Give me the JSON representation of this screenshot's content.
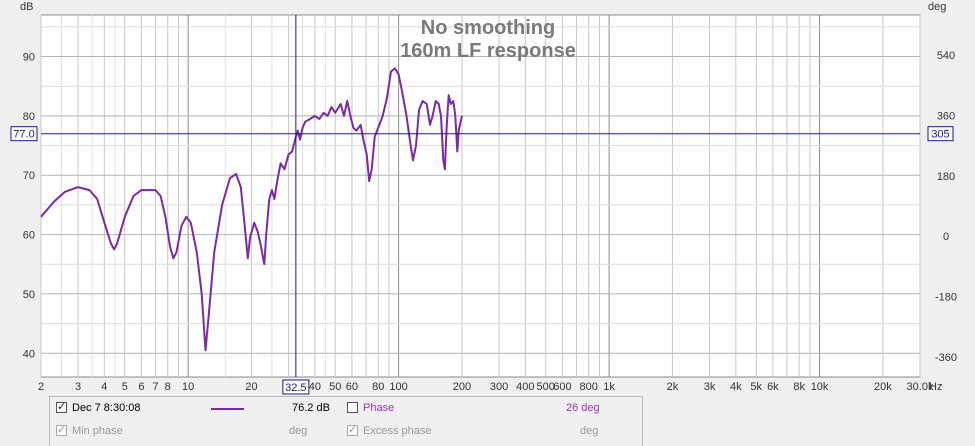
{
  "chart_data": {
    "type": "line",
    "title": "No smoothing",
    "subtitle": "160m LF response",
    "y_left_unit": "dB",
    "y_right_unit": "deg",
    "x_unit": "Hz",
    "x_scale": "log",
    "xlim": [
      2,
      30000
    ],
    "ylim": [
      36,
      97
    ],
    "y_right_lim": [
      -420,
      660
    ],
    "grid": true,
    "x_tick_labels": [
      {
        "v": 2,
        "t": "2"
      },
      {
        "v": 3,
        "t": "3"
      },
      {
        "v": 4,
        "t": "4"
      },
      {
        "v": 5,
        "t": "5"
      },
      {
        "v": 6,
        "t": "6"
      },
      {
        "v": 7,
        "t": "7"
      },
      {
        "v": 8,
        "t": "8"
      },
      {
        "v": 10,
        "t": "10"
      },
      {
        "v": 20,
        "t": "20"
      },
      {
        "v": 40,
        "t": "40"
      },
      {
        "v": 50,
        "t": "50"
      },
      {
        "v": 60,
        "t": "60"
      },
      {
        "v": 80,
        "t": "80"
      },
      {
        "v": 100,
        "t": "100"
      },
      {
        "v": 200,
        "t": "200"
      },
      {
        "v": 300,
        "t": "300"
      },
      {
        "v": 400,
        "t": "400"
      },
      {
        "v": 500,
        "t": "500"
      },
      {
        "v": 600,
        "t": "600"
      },
      {
        "v": 800,
        "t": "800"
      },
      {
        "v": 1000,
        "t": "1k"
      },
      {
        "v": 2000,
        "t": "2k"
      },
      {
        "v": 3000,
        "t": "3k"
      },
      {
        "v": 4000,
        "t": "4k"
      },
      {
        "v": 5000,
        "t": "5k"
      },
      {
        "v": 6000,
        "t": "6k"
      },
      {
        "v": 8000,
        "t": "8k"
      },
      {
        "v": 10000,
        "t": "10k"
      },
      {
        "v": 20000,
        "t": "20k"
      },
      {
        "v": 30000,
        "t": "30.0k"
      }
    ],
    "y_ticks": [
      40,
      50,
      60,
      70,
      80,
      90
    ],
    "y_right_ticks": [
      -360,
      -180,
      0,
      180,
      360,
      540
    ],
    "cursor": {
      "x": 32.5,
      "x_label": "32.5",
      "y_label": "77.0",
      "y_right_label": "305",
      "y": 77.0
    },
    "series": [
      {
        "name": "Dec 7 8:30:08",
        "color": "#7a2aa8",
        "points": [
          [
            2.0,
            63.0
          ],
          [
            2.3,
            65.5
          ],
          [
            2.6,
            67.2
          ],
          [
            3.0,
            68.0
          ],
          [
            3.4,
            67.5
          ],
          [
            3.7,
            66.0
          ],
          [
            4.0,
            62.0
          ],
          [
            4.3,
            58.5
          ],
          [
            4.45,
            57.5
          ],
          [
            4.6,
            58.5
          ],
          [
            5.0,
            63.0
          ],
          [
            5.5,
            66.5
          ],
          [
            6.0,
            67.5
          ],
          [
            7.0,
            67.5
          ],
          [
            7.4,
            66.5
          ],
          [
            7.8,
            63.0
          ],
          [
            8.2,
            58.0
          ],
          [
            8.5,
            56.0
          ],
          [
            8.8,
            57.0
          ],
          [
            9.3,
            61.5
          ],
          [
            9.8,
            63.0
          ],
          [
            10.3,
            62.0
          ],
          [
            11.0,
            57.0
          ],
          [
            11.6,
            50.0
          ],
          [
            12.1,
            40.5
          ],
          [
            12.5,
            46.0
          ],
          [
            13.3,
            57.0
          ],
          [
            14.5,
            65.0
          ],
          [
            15.8,
            69.5
          ],
          [
            16.9,
            70.2
          ],
          [
            17.8,
            68.0
          ],
          [
            18.5,
            62.0
          ],
          [
            19.2,
            56.0
          ],
          [
            19.7,
            59.5
          ],
          [
            20.6,
            62.0
          ],
          [
            21.4,
            60.5
          ],
          [
            22.2,
            58.0
          ],
          [
            22.7,
            56.0
          ],
          [
            23.0,
            55.0
          ],
          [
            23.5,
            60.0
          ],
          [
            24.3,
            66.0
          ],
          [
            25.0,
            67.5
          ],
          [
            25.7,
            66.0
          ],
          [
            26.5,
            69.0
          ],
          [
            27.5,
            72.0
          ],
          [
            28.7,
            71.0
          ],
          [
            30.0,
            73.5
          ],
          [
            31.2,
            74.0
          ],
          [
            32.0,
            75.5
          ],
          [
            32.5,
            76.5
          ],
          [
            33.2,
            77.5
          ],
          [
            34.0,
            76.0
          ],
          [
            35.0,
            78.0
          ],
          [
            36.0,
            79.0
          ],
          [
            38.0,
            79.5
          ],
          [
            40.0,
            80.0
          ],
          [
            42.0,
            79.5
          ],
          [
            44.0,
            80.5
          ],
          [
            46.0,
            80.0
          ],
          [
            48.0,
            81.5
          ],
          [
            50.0,
            80.5
          ],
          [
            53.0,
            82.0
          ],
          [
            55.0,
            80.0
          ],
          [
            57.0,
            82.5
          ],
          [
            59.0,
            80.0
          ],
          [
            61.0,
            78.0
          ],
          [
            63.0,
            77.5
          ],
          [
            66.0,
            78.5
          ],
          [
            68.0,
            76.0
          ],
          [
            70.5,
            73.5
          ],
          [
            72.5,
            69.0
          ],
          [
            74.5,
            71.0
          ],
          [
            77.0,
            76.5
          ],
          [
            80.0,
            78.0
          ],
          [
            84.0,
            80.0
          ],
          [
            88.0,
            83.0
          ],
          [
            92.0,
            87.5
          ],
          [
            96.0,
            88.0
          ],
          [
            100.0,
            87.0
          ],
          [
            104.0,
            84.0
          ],
          [
            109.0,
            80.0
          ],
          [
            113.0,
            76.0
          ],
          [
            117.0,
            72.5
          ],
          [
            121.0,
            75.0
          ],
          [
            125.0,
            81.0
          ],
          [
            130.0,
            82.5
          ],
          [
            136.0,
            82.0
          ],
          [
            141.0,
            78.5
          ],
          [
            145.0,
            80.0
          ],
          [
            150.0,
            82.5
          ],
          [
            155.0,
            82.0
          ],
          [
            159.0,
            80.0
          ],
          [
            163.0,
            72.5
          ],
          [
            166.0,
            71.0
          ],
          [
            169.0,
            78.0
          ],
          [
            173.0,
            83.5
          ],
          [
            177.0,
            82.0
          ],
          [
            182.0,
            82.5
          ],
          [
            186.0,
            80.0
          ],
          [
            190.0,
            74.0
          ],
          [
            193.0,
            77.5
          ],
          [
            197.0,
            79.0
          ],
          [
            200.0,
            80.0
          ]
        ]
      }
    ]
  },
  "legend": {
    "row1": {
      "series_name": "Dec 7 8:30:08",
      "series_value": "76.2 dB",
      "phase_label": "Phase",
      "phase_value": "26 deg"
    },
    "row2": {
      "min_phase_label": "Min phase",
      "min_phase_value": "deg",
      "excess_phase_label": "Excess phase",
      "excess_phase_value": "deg"
    }
  }
}
